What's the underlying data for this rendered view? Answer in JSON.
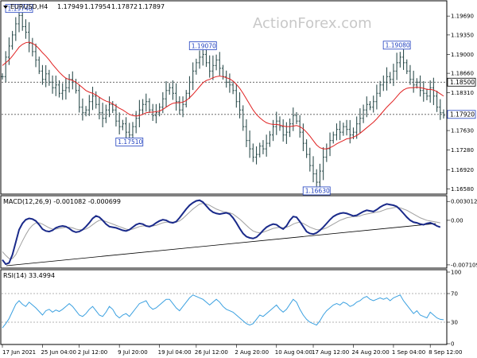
{
  "watermark": "ActionForex.com",
  "chart_data": [
    {
      "type": "line",
      "panel": "price",
      "title": "EURUSD,H4",
      "ohlc": [
        "1.17949",
        "1.17954",
        "1.17872",
        "1.17897"
      ],
      "y_ticks": [
        "1.19690",
        "1.19350",
        "1.19000",
        "1.18660",
        "1.18310",
        "1.17630",
        "1.17280",
        "1.16920",
        "1.16580"
      ],
      "ylim": [
        1.165,
        1.1995
      ],
      "price_tags": [
        {
          "label": "1.18500",
          "value": 1.185,
          "style": "box"
        },
        {
          "label": "1.17920",
          "value": 1.1792,
          "style": "box-blue"
        }
      ],
      "levels": [
        1.185,
        1.1792
      ],
      "annotations": [
        {
          "label": "1.19740",
          "x": 5,
          "value": 1.1974
        },
        {
          "label": "1.17510",
          "x": 38,
          "value": 1.1751
        },
        {
          "label": "1.19070",
          "x": 60,
          "value": 1.1907
        },
        {
          "label": "1.16630",
          "x": 94,
          "value": 1.1663
        },
        {
          "label": "1.19080",
          "x": 118,
          "value": 1.1908
        }
      ],
      "series": [
        {
          "values": [
            1.186,
            1.1895,
            1.1915,
            1.1935,
            1.1955,
            1.197,
            1.195,
            1.194,
            1.192,
            1.1905,
            1.189,
            1.187,
            1.1855,
            1.1865,
            1.185,
            1.184,
            1.1845,
            1.183,
            1.1835,
            1.184,
            1.1855,
            1.185,
            1.1835,
            1.1805,
            1.1795,
            1.18,
            1.1815,
            1.1825,
            1.181,
            1.1795,
            1.1785,
            1.18,
            1.181,
            1.18,
            1.178,
            1.177,
            1.1775,
            1.176,
            1.1755,
            1.177,
            1.1785,
            1.18,
            1.181,
            1.1815,
            1.18,
            1.179,
            1.1795,
            1.1805,
            1.182,
            1.1835,
            1.184,
            1.183,
            1.1815,
            1.18,
            1.181,
            1.183,
            1.185,
            1.187,
            1.1885,
            1.1895,
            1.19,
            1.1885,
            1.187,
            1.188,
            1.189,
            1.1875,
            1.186,
            1.185,
            1.1845,
            1.1835,
            1.1815,
            1.18,
            1.177,
            1.1745,
            1.173,
            1.1715,
            1.172,
            1.1735,
            1.173,
            1.174,
            1.1755,
            1.177,
            1.178,
            1.177,
            1.1755,
            1.176,
            1.1775,
            1.179,
            1.178,
            1.176,
            1.174,
            1.172,
            1.17,
            1.1685,
            1.167,
            1.169,
            1.1715,
            1.173,
            1.1745,
            1.1755,
            1.1765,
            1.176,
            1.177,
            1.1765,
            1.1755,
            1.176,
            1.1775,
            1.1785,
            1.18,
            1.181,
            1.1805,
            1.1815,
            1.183,
            1.1845,
            1.185,
            1.186,
            1.1855,
            1.187,
            1.1885,
            1.1895,
            1.1885,
            1.187,
            1.1855,
            1.1845,
            1.185,
            1.1835,
            1.183,
            1.1825,
            1.184,
            1.1825,
            1.1805,
            1.1795,
            1.179
          ]
        },
        {
          "values": [
            1.188,
            1.1885,
            1.189,
            1.1897,
            1.1905,
            1.1913,
            1.1918,
            1.1921,
            1.1922,
            1.192,
            1.1916,
            1.191,
            1.1903,
            1.1897,
            1.189,
            1.1882,
            1.1875,
            1.1868,
            1.1862,
            1.1857,
            1.1855,
            1.1853,
            1.185,
            1.1845,
            1.184,
            1.1835,
            1.1832,
            1.183,
            1.1827,
            1.1823,
            1.1819,
            1.1816,
            1.1814,
            1.1811,
            1.1807,
            1.1803,
            1.18,
            1.1796,
            1.1792,
            1.179,
            1.1789,
            1.179,
            1.1792,
            1.1795,
            1.1796,
            1.1796,
            1.1797,
            1.1798,
            1.1801,
            1.1805,
            1.1809,
            1.1812,
            1.1813,
            1.1813,
            1.1814,
            1.1817,
            1.1822,
            1.1828,
            1.1835,
            1.1842,
            1.1849,
            1.1853,
            1.1855,
            1.1858,
            1.186,
            1.1861,
            1.186,
            1.1858,
            1.1856,
            1.1852,
            1.1846,
            1.1839,
            1.183,
            1.182,
            1.181,
            1.18,
            1.1792,
            1.1786,
            1.1781,
            1.1777,
            1.1775,
            1.1774,
            1.1774,
            1.1773,
            1.1771,
            1.177,
            1.177,
            1.1771,
            1.1772,
            1.177,
            1.1766,
            1.176,
            1.1753,
            1.1745,
            1.1737,
            1.1732,
            1.173,
            1.173,
            1.1732,
            1.1735,
            1.1739,
            1.1742,
            1.1745,
            1.1748,
            1.1749,
            1.1751,
            1.1754,
            1.1758,
            1.1763,
            1.1768,
            1.1773,
            1.1778,
            1.1784,
            1.1791,
            1.1798,
            1.1805,
            1.1811,
            1.1817,
            1.1824,
            1.1831,
            1.1836,
            1.1839,
            1.184,
            1.184,
            1.1841,
            1.184,
            1.1839,
            1.1837,
            1.1837,
            1.1836,
            1.1833,
            1.1829,
            1.1825
          ]
        }
      ]
    },
    {
      "type": "line",
      "panel": "macd",
      "title": "MACD(12,26,9) -0.001082 -0.000699",
      "y_ticks": [
        "0.003012",
        "0.00",
        "-0.007109"
      ],
      "ylim": [
        -0.0075,
        0.0038
      ],
      "series": [
        {
          "values": [
            -0.0063,
            -0.007,
            -0.0068,
            -0.0055,
            -0.0035,
            -0.0015,
            -0.0005,
            0.0001,
            0.0003,
            0.0002,
            -0.0001,
            -0.0007,
            -0.0014,
            -0.0017,
            -0.0018,
            -0.0016,
            -0.0012,
            -0.001,
            -0.0009,
            -0.001,
            -0.0013,
            -0.0017,
            -0.0019,
            -0.0018,
            -0.0015,
            -0.001,
            -0.0004,
            0.0003,
            0.0007,
            0.0005,
            0.0,
            -0.0006,
            -0.001,
            -0.0011,
            -0.0012,
            -0.0014,
            -0.0016,
            -0.0017,
            -0.0015,
            -0.0011,
            -0.0007,
            -0.0005,
            -0.0006,
            -0.0009,
            -0.001,
            -0.0008,
            -0.0004,
            -0.0001,
            0.0001,
            0.0,
            -0.0003,
            -0.0004,
            -0.0002,
            0.0004,
            0.0011,
            0.0018,
            0.0024,
            0.0028,
            0.0031,
            0.0032,
            0.0029,
            0.0023,
            0.0017,
            0.0013,
            0.0011,
            0.001,
            0.0011,
            0.0012,
            0.001,
            0.0004,
            -0.0004,
            -0.0013,
            -0.0021,
            -0.0026,
            -0.0028,
            -0.0029,
            -0.0027,
            -0.0022,
            -0.0016,
            -0.0011,
            -0.0008,
            -0.0006,
            -0.0007,
            -0.0011,
            -0.0014,
            -0.0009,
            0.0,
            0.0006,
            0.0005,
            -0.0002,
            -0.001,
            -0.0018,
            -0.0021,
            -0.0022,
            -0.002,
            -0.0016,
            -0.0011,
            -0.0005,
            0.0001,
            0.0006,
            0.0009,
            0.0011,
            0.0012,
            0.0011,
            0.0009,
            0.0007,
            0.0008,
            0.0011,
            0.0014,
            0.0016,
            0.0015,
            0.0014,
            0.0017,
            0.0021,
            0.0024,
            0.0026,
            0.0025,
            0.0024,
            0.0022,
            0.0017,
            0.0011,
            0.0005,
            0.0,
            -0.0003,
            -0.0004,
            -0.0006,
            -0.0007,
            -0.0005,
            -0.0004,
            -0.0006,
            -0.0009,
            -0.0011
          ]
        },
        {
          "values": [
            -0.005,
            -0.0056,
            -0.0061,
            -0.0061,
            -0.0055,
            -0.0044,
            -0.0033,
            -0.0023,
            -0.0014,
            -0.0008,
            -0.0004,
            -0.0004,
            -0.0006,
            -0.0009,
            -0.0012,
            -0.0014,
            -0.0014,
            -0.0013,
            -0.0012,
            -0.0011,
            -0.0011,
            -0.0012,
            -0.0014,
            -0.0015,
            -0.0015,
            -0.0014,
            -0.0011,
            -0.0007,
            -0.0003,
            0.0,
            0.0,
            -0.0002,
            -0.0004,
            -0.0006,
            -0.0008,
            -0.001,
            -0.0012,
            -0.0014,
            -0.0015,
            -0.0014,
            -0.0012,
            -0.001,
            -0.0009,
            -0.0009,
            -0.0009,
            -0.0009,
            -0.0008,
            -0.0006,
            -0.0004,
            -0.0003,
            -0.0003,
            -0.0003,
            -0.0003,
            -0.0001,
            0.0003,
            0.0008,
            0.0013,
            0.0018,
            0.0022,
            0.0026,
            0.0027,
            0.0026,
            0.0024,
            0.0021,
            0.0018,
            0.0016,
            0.0014,
            0.0013,
            0.0012,
            0.001,
            0.0006,
            0.0002,
            -0.0003,
            -0.0008,
            -0.0013,
            -0.0017,
            -0.0019,
            -0.002,
            -0.0019,
            -0.0017,
            -0.0015,
            -0.0013,
            -0.0012,
            -0.0011,
            -0.0012,
            -0.0011,
            -0.0009,
            -0.0006,
            -0.0004,
            -0.0003,
            -0.0005,
            -0.0008,
            -0.0011,
            -0.0013,
            -0.0015,
            -0.0015,
            -0.0014,
            -0.0012,
            -0.0009,
            -0.0006,
            -0.0003,
            0.0,
            0.0002,
            0.0004,
            0.0005,
            0.0006,
            0.0006,
            0.0007,
            0.0009,
            0.001,
            0.0011,
            0.0012,
            0.0013,
            0.0014,
            0.0016,
            0.0018,
            0.0019,
            0.002,
            0.0021,
            0.002,
            0.0018,
            0.0016,
            0.0013,
            0.001,
            0.0007,
            0.0004,
            0.0002,
            0.0,
            -0.0001,
            -0.0002,
            -0.0003,
            -0.0004
          ]
        }
      ]
    },
    {
      "type": "line",
      "panel": "rsi",
      "title": "RSI(14) 33.4994",
      "y_ticks": [
        "100",
        "70",
        "30",
        "0"
      ],
      "ylim": [
        0,
        100
      ],
      "levels": [
        70,
        30
      ],
      "series": [
        {
          "values": [
            22,
            28,
            35,
            45,
            55,
            60,
            55,
            52,
            58,
            54,
            50,
            45,
            40,
            46,
            48,
            44,
            47,
            45,
            48,
            52,
            56,
            52,
            46,
            40,
            38,
            42,
            48,
            52,
            46,
            40,
            38,
            44,
            52,
            48,
            40,
            36,
            40,
            42,
            38,
            44,
            50,
            56,
            58,
            60,
            52,
            48,
            50,
            54,
            58,
            62,
            62,
            56,
            50,
            46,
            52,
            58,
            64,
            68,
            66,
            64,
            62,
            58,
            54,
            58,
            62,
            58,
            52,
            48,
            46,
            44,
            40,
            36,
            32,
            28,
            26,
            28,
            34,
            40,
            38,
            42,
            46,
            50,
            54,
            48,
            44,
            48,
            55,
            62,
            58,
            48,
            40,
            34,
            30,
            28,
            26,
            32,
            40,
            46,
            50,
            54,
            56,
            54,
            58,
            56,
            52,
            54,
            58,
            60,
            64,
            66,
            62,
            60,
            62,
            64,
            62,
            64,
            60,
            64,
            66,
            68,
            60,
            54,
            48,
            42,
            46,
            40,
            38,
            36,
            44,
            40,
            36,
            34,
            33.5
          ]
        }
      ]
    }
  ],
  "x_labels": [
    {
      "label": "17 Jun 2021",
      "x": 0
    },
    {
      "label": "25 Jun 04:00",
      "x": 12
    },
    {
      "label": "2 Jul 12:00",
      "x": 23
    },
    {
      "label": "9 Jul 20:00",
      "x": 35
    },
    {
      "label": "19 Jul 04:00",
      "x": 47
    },
    {
      "label": "26 Jul 12:00",
      "x": 58
    },
    {
      "label": "2 Aug 20:00",
      "x": 70
    },
    {
      "label": "10 Aug 04:00",
      "x": 82
    },
    {
      "label": "17 Aug 12:00",
      "x": 93
    },
    {
      "label": "24 Aug 20:00",
      "x": 105
    },
    {
      "label": "1 Sep 04:00",
      "x": 117
    },
    {
      "label": "8 Sep 12:00",
      "x": 128
    }
  ]
}
